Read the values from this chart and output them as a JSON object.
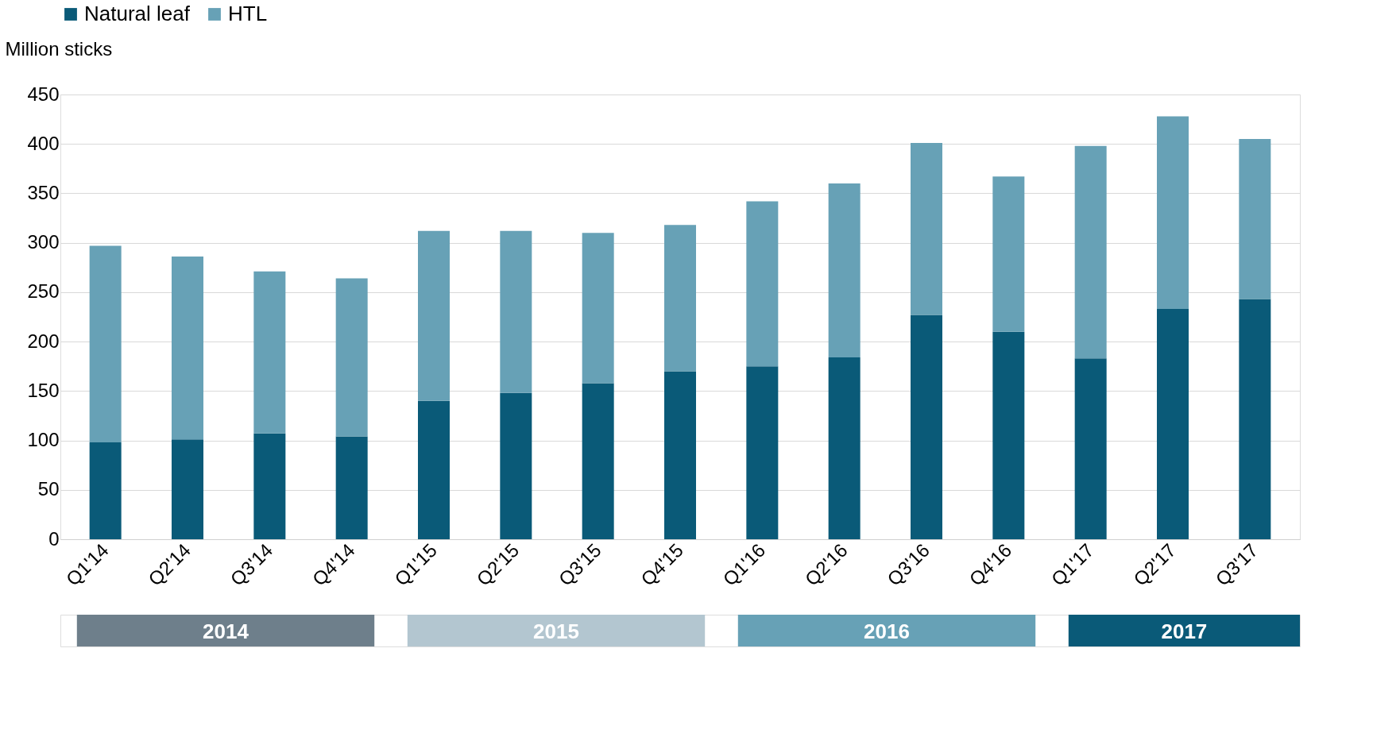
{
  "chart_data": {
    "type": "bar",
    "stacked": true,
    "ylabel": "Million sticks",
    "categories": [
      "Q1'14",
      "Q2'14",
      "Q3'14",
      "Q4'14",
      "Q1'15",
      "Q2'15",
      "Q3'15",
      "Q4'15",
      "Q1'16",
      "Q2'16",
      "Q3'16",
      "Q4'16",
      "Q1'17",
      "Q2'17",
      "Q3'17"
    ],
    "series": [
      {
        "name": "Natural  leaf",
        "color": "#0a5a78",
        "values": [
          98,
          101,
          107,
          104,
          140,
          148,
          158,
          170,
          175,
          184,
          227,
          210,
          183,
          233,
          243
        ]
      },
      {
        "name": "HTL",
        "color": "#67a1b6",
        "values": [
          199,
          185,
          164,
          160,
          172,
          164,
          152,
          148,
          167,
          176,
          174,
          157,
          215,
          195,
          162
        ]
      }
    ],
    "ylim": [
      0,
      450
    ],
    "yticks": [
      0,
      50,
      100,
      150,
      200,
      250,
      300,
      350,
      400,
      450
    ],
    "grid": "y",
    "legend": "top",
    "annotations": [
      "2014",
      "2015",
      "2016",
      "2017"
    ]
  }
}
